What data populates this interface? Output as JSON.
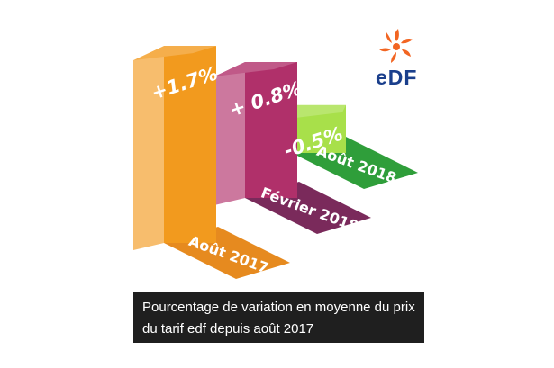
{
  "chart_data": {
    "type": "bar",
    "categories": [
      "Août 2017",
      "Février 2018",
      "Août 2018"
    ],
    "values": [
      1.7,
      0.8,
      -0.5
    ],
    "value_labels": [
      "+1.7%",
      "+ 0.8%",
      "-0.5%"
    ],
    "colors": [
      "#f29a1e",
      "#b0306a",
      "#a8e04a"
    ],
    "base_colors": [
      "#e68a1f",
      "#7a2a5b",
      "#2f9e3a"
    ],
    "title": "",
    "xlabel": "",
    "ylabel": ""
  },
  "caption": "Pourcentage de variation en moyenne du prix du tarif edf depuis août 2017",
  "logo": {
    "text": "eDF",
    "icon": "edf-swirl-icon"
  }
}
